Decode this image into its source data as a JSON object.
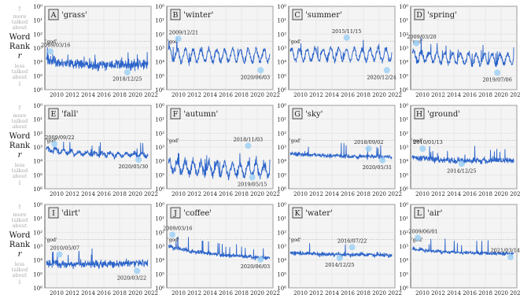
{
  "figure": {
    "side_label": {
      "up_arrow": "↑",
      "more": [
        "more",
        "talked",
        "about"
      ],
      "title": [
        "Word",
        "Rank"
      ],
      "symbol": "r",
      "less": [
        "less",
        "talked",
        "about"
      ],
      "down_arrow": "↓"
    },
    "god_label": "'god'",
    "colors": {
      "line": "#2b63c9",
      "highlight": "#9fd0f5",
      "grid": "#dcdcdc",
      "panel_bg": "#f4f4f4",
      "letter_box": "#e8e8e8",
      "ref_line": "#999999"
    }
  },
  "chart_data": [
    {
      "type": "line",
      "letter": "A",
      "title": "'grass'",
      "y_scale": "log",
      "y_ticks": [
        "10⁰",
        "10¹",
        "10²",
        "10³",
        "10⁴",
        "10⁵",
        "10⁶"
      ],
      "x_ticks": [
        "2010",
        "2012",
        "2014",
        "2016",
        "2018",
        "2020",
        "2022"
      ],
      "xlim": [
        2008.5,
        2022
      ],
      "god_rank": 320,
      "series": {
        "x_start": 2008.7,
        "x_end": 2021.6,
        "base": [
          8000,
          12000,
          15000,
          17000,
          17000,
          16000,
          15000
        ],
        "spread": 0.35,
        "seasonal": 0.05
      },
      "annotations": [
        {
          "label": "2009/03/16",
          "date": 2009.21,
          "rank": 1800
        },
        {
          "label": "2018/12/25",
          "date": 2018.98,
          "rank": 55000
        }
      ]
    },
    {
      "type": "line",
      "letter": "B",
      "title": "'winter'",
      "y_scale": "log",
      "y_ticks": [
        "10⁰",
        "10¹",
        "10²",
        "10³",
        "10⁴",
        "10⁵",
        "10⁶"
      ],
      "x_ticks": [
        "2010",
        "2012",
        "2014",
        "2016",
        "2018",
        "2020",
        "2022"
      ],
      "xlim": [
        2008.5,
        2022
      ],
      "god_rank": 320,
      "series": {
        "x_start": 2008.7,
        "x_end": 2021.6,
        "base": [
          3000,
          3500,
          3500,
          3500,
          3500,
          3500,
          3500
        ],
        "spread": 0.2,
        "seasonal": 0.9
      },
      "annotations": [
        {
          "label": "2009/12/21",
          "date": 2009.97,
          "rank": 220
        },
        {
          "label": "2020/06/03",
          "date": 2020.42,
          "rank": 40000
        }
      ]
    },
    {
      "type": "line",
      "letter": "C",
      "title": "'summer'",
      "y_scale": "log",
      "y_ticks": [
        "10⁰",
        "10¹",
        "10²",
        "10³",
        "10⁴",
        "10⁵",
        "10⁶"
      ],
      "x_ticks": [
        "2010",
        "2012",
        "2014",
        "2016",
        "2018",
        "2020",
        "2022"
      ],
      "xlim": [
        2008.5,
        2022
      ],
      "god_rank": 320,
      "series": {
        "x_start": 2008.7,
        "x_end": 2021.6,
        "base": [
          3000,
          3000,
          3000,
          3000,
          3000,
          3000,
          3000
        ],
        "spread": 0.2,
        "seasonal": 0.85
      },
      "annotations": [
        {
          "label": "2015/11/15",
          "date": 2015.87,
          "rank": 180
        },
        {
          "label": "2020/12/24",
          "date": 2020.98,
          "rank": 40000
        }
      ]
    },
    {
      "type": "line",
      "letter": "D",
      "title": "'spring'",
      "y_scale": "log",
      "y_ticks": [
        "10⁰",
        "10¹",
        "10²",
        "10³",
        "10⁴",
        "10⁵",
        "10⁶"
      ],
      "x_ticks": [
        "2010",
        "2012",
        "2014",
        "2016",
        "2018",
        "2020",
        "2022"
      ],
      "xlim": [
        2008.5,
        2022
      ],
      "god_rank": 320,
      "series": {
        "x_start": 2008.7,
        "x_end": 2021.6,
        "base": [
          3500,
          4500,
          5500,
          6000,
          6500,
          6500,
          6500
        ],
        "spread": 0.2,
        "seasonal": 0.75
      },
      "annotations": [
        {
          "label": "2009/03/20",
          "date": 2009.22,
          "rank": 450
        },
        {
          "label": "2019/07/06",
          "date": 2019.51,
          "rank": 60000
        }
      ]
    },
    {
      "type": "line",
      "letter": "E",
      "title": "'fall'",
      "y_scale": "log",
      "y_ticks": [
        "10⁰",
        "10¹",
        "10²",
        "10³",
        "10⁴",
        "10⁵",
        "10⁶"
      ],
      "x_ticks": [
        "2010",
        "2012",
        "2014",
        "2016",
        "2018",
        "2020",
        "2022"
      ],
      "xlim": [
        2008.5,
        2022
      ],
      "god_rank": 320,
      "series": {
        "x_start": 2008.7,
        "x_end": 2021.6,
        "base": [
          1500,
          2200,
          2800,
          3200,
          3500,
          3600,
          3600
        ],
        "spread": 0.18,
        "seasonal": 0.25
      },
      "annotations": [
        {
          "label": "2009/09/22",
          "date": 2009.72,
          "rank": 600
        },
        {
          "label": "2020/05/30",
          "date": 2020.41,
          "rank": 8000
        }
      ]
    },
    {
      "type": "line",
      "letter": "F",
      "title": "'autumn'",
      "y_scale": "log",
      "y_ticks": [
        "10⁰",
        "10¹",
        "10²",
        "10³",
        "10⁴",
        "10⁵",
        "10⁶"
      ],
      "x_ticks": [
        "2010",
        "2012",
        "2014",
        "2016",
        "2018",
        "2020",
        "2022"
      ],
      "xlim": [
        2008.5,
        2022
      ],
      "god_rank": 320,
      "series": {
        "x_start": 2008.7,
        "x_end": 2021.6,
        "base": [
          22000,
          30000,
          35000,
          38000,
          40000,
          40000,
          42000
        ],
        "spread": 0.3,
        "seasonal": 0.9
      },
      "annotations": [
        {
          "label": "2018/11/03",
          "date": 2018.84,
          "rank": 800
        },
        {
          "label": "2019/05/15",
          "date": 2019.37,
          "rank": 150000
        }
      ]
    },
    {
      "type": "line",
      "letter": "G",
      "title": "'sky'",
      "y_scale": "log",
      "y_ticks": [
        "10⁰",
        "10¹",
        "10²",
        "10³",
        "10⁴",
        "10⁵",
        "10⁶"
      ],
      "x_ticks": [
        "2010",
        "2012",
        "2014",
        "2016",
        "2018",
        "2020",
        "2022"
      ],
      "xlim": [
        2008.5,
        2022
      ],
      "god_rank": 320,
      "series": {
        "x_start": 2008.7,
        "x_end": 2021.6,
        "base": [
          3000,
          3500,
          4000,
          4500,
          4800,
          5000,
          5000
        ],
        "spread": 0.15,
        "seasonal": 0.05
      },
      "annotations": [
        {
          "label": "2018/09/02",
          "date": 2018.67,
          "rank": 1300
        },
        {
          "label": "2020/05/31",
          "date": 2020.41,
          "rank": 9000
        }
      ]
    },
    {
      "type": "line",
      "letter": "H",
      "title": "'ground'",
      "y_scale": "log",
      "y_ticks": [
        "10⁰",
        "10¹",
        "10²",
        "10³",
        "10⁴",
        "10⁵",
        "10⁶"
      ],
      "x_ticks": [
        "2010",
        "2012",
        "2014",
        "2016",
        "2018",
        "2020",
        "2022"
      ],
      "xlim": [
        2008.5,
        2022
      ],
      "god_rank": 320,
      "series": {
        "x_start": 2008.7,
        "x_end": 2021.6,
        "base": [
          5000,
          7000,
          9000,
          10000,
          9500,
          9000,
          9000
        ],
        "spread": 0.2,
        "seasonal": 0.05
      },
      "annotations": [
        {
          "label": "2010/01/13",
          "date": 2010.03,
          "rank": 1300
        },
        {
          "label": "2014/12/25",
          "date": 2014.98,
          "rank": 16000
        }
      ]
    },
    {
      "type": "line",
      "letter": "I",
      "title": "'dirt'",
      "y_scale": "log",
      "y_ticks": [
        "10⁰",
        "10¹",
        "10²",
        "10³",
        "10⁴",
        "10⁵",
        "10⁶"
      ],
      "x_ticks": [
        "2010",
        "2012",
        "2014",
        "2016",
        "2018",
        "2020",
        "2022"
      ],
      "xlim": [
        2008.5,
        2022
      ],
      "god_rank": 320,
      "series": {
        "x_start": 2008.7,
        "x_end": 2021.6,
        "base": [
          18000,
          20000,
          20000,
          19000,
          18000,
          17000,
          17000
        ],
        "spread": 0.25,
        "seasonal": 0.05
      },
      "annotations": [
        {
          "label": "2010/05/07",
          "date": 2010.35,
          "rank": 4000
        },
        {
          "label": "2020/03/22",
          "date": 2020.22,
          "rank": 60000
        }
      ]
    },
    {
      "type": "line",
      "letter": "J",
      "title": "'coffee'",
      "y_scale": "log",
      "y_ticks": [
        "10⁰",
        "10¹",
        "10²",
        "10³",
        "10⁴",
        "10⁵",
        "10⁶"
      ],
      "x_ticks": [
        "2010",
        "2012",
        "2014",
        "2016",
        "2018",
        "2020",
        "2022"
      ],
      "xlim": [
        2008.5,
        2022
      ],
      "god_rank": 320,
      "series": {
        "x_start": 2008.7,
        "x_end": 2021.6,
        "base": [
          1000,
          2000,
          3000,
          4000,
          5000,
          6500,
          7000
        ],
        "spread": 0.15,
        "seasonal": 0.05
      },
      "annotations": [
        {
          "label": "2009/03/16",
          "date": 2009.21,
          "rank": 150
        },
        {
          "label": "2020/06/03",
          "date": 2020.42,
          "rank": 9000
        }
      ]
    },
    {
      "type": "line",
      "letter": "K",
      "title": "'water'",
      "y_scale": "log",
      "y_ticks": [
        "10⁰",
        "10¹",
        "10²",
        "10³",
        "10⁴",
        "10⁵",
        "10⁶"
      ],
      "x_ticks": [
        "2010",
        "2012",
        "2014",
        "2016",
        "2018",
        "2020",
        "2022"
      ],
      "xlim": [
        2008.5,
        2022
      ],
      "god_rank": 320,
      "series": {
        "x_start": 2008.7,
        "x_end": 2021.6,
        "base": [
          3000,
          3500,
          3800,
          4000,
          4000,
          4200,
          4500
        ],
        "spread": 0.15,
        "seasonal": 0.05
      },
      "annotations": [
        {
          "label": "2016/07/22",
          "date": 2016.56,
          "rank": 1200
        },
        {
          "label": "2014/12/25",
          "date": 2014.98,
          "rank": 7000
        }
      ]
    },
    {
      "type": "line",
      "letter": "L",
      "title": "'air'",
      "y_scale": "log",
      "y_ticks": [
        "10⁰",
        "10¹",
        "10²",
        "10³",
        "10⁴",
        "10⁵",
        "10⁶"
      ],
      "x_ticks": [
        "2010",
        "2012",
        "2014",
        "2016",
        "2018",
        "2020",
        "2022"
      ],
      "xlim": [
        2008.5,
        2022
      ],
      "god_rank": 320,
      "series": {
        "x_start": 2008.7,
        "x_end": 2021.6,
        "base": [
          1500,
          2200,
          2600,
          2900,
          3100,
          3300,
          3400
        ],
        "spread": 0.12,
        "seasonal": 0.05
      },
      "annotations": [
        {
          "label": "2009/06/01",
          "date": 2009.42,
          "rank": 250
        },
        {
          "label": "2021/03/14",
          "date": 2021.2,
          "rank": 6000
        }
      ]
    }
  ]
}
